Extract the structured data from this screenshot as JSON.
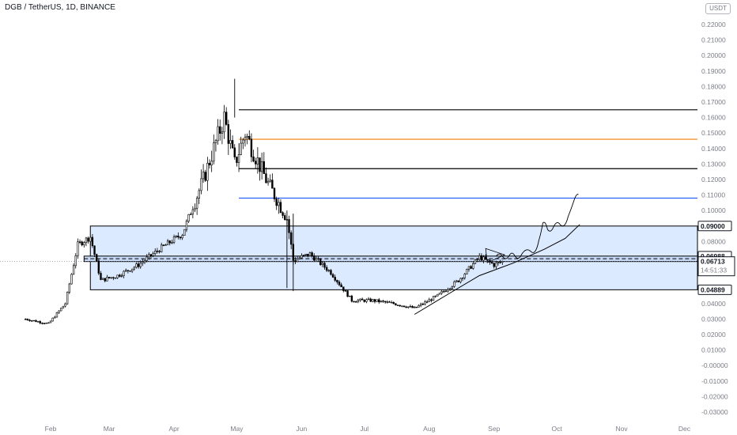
{
  "header": {
    "title": "DGB / TetherUS, 1D, BINANCE",
    "currency_badge": "USDT"
  },
  "colors": {
    "up": "#000000",
    "down": "#000000",
    "zone_fill": "#d6e6ff",
    "blue_line": "#2962ff",
    "orange_line": "#f57c00",
    "last_price_bg": "#131722"
  },
  "chart_data": {
    "type": "candlestick",
    "symbol": "DGB / TetherUS",
    "interval": "1D",
    "exchange": "BINANCE",
    "y_axis": {
      "range": [
        -0.03,
        0.23
      ],
      "ticks": [
        "0.22000",
        "0.21000",
        "0.20000",
        "0.19000",
        "0.18000",
        "0.17000",
        "0.16000",
        "0.15000",
        "0.14000",
        "0.13000",
        "0.12000",
        "0.11000",
        "0.10000",
        "0.09000",
        "0.08000",
        "0.07000",
        "0.06000",
        "0.05000",
        "0.04000",
        "0.03000",
        "0.02000",
        "0.01000",
        "-0.00000",
        "-0.01000",
        "-0.02000",
        "-0.03000"
      ]
    },
    "x_axis": {
      "labels": [
        "Feb",
        "Mar",
        "Apr",
        "May",
        "Jun",
        "Jul",
        "Aug",
        "Sep",
        "Oct",
        "Nov",
        "Dec"
      ]
    },
    "price_anchors": [
      {
        "date": "Jan 20",
        "close": 0.03
      },
      {
        "date": "Jan 31",
        "close": 0.027
      },
      {
        "date": "Feb 08",
        "close": 0.04
      },
      {
        "date": "Feb 14",
        "close": 0.078
      },
      {
        "date": "Feb 20",
        "close": 0.083
      },
      {
        "date": "Feb 25",
        "close": 0.055
      },
      {
        "date": "Mar 05",
        "close": 0.058
      },
      {
        "date": "Mar 15",
        "close": 0.065
      },
      {
        "date": "Mar 25",
        "close": 0.075
      },
      {
        "date": "Apr 05",
        "close": 0.085
      },
      {
        "date": "Apr 15",
        "close": 0.12
      },
      {
        "date": "Apr 25",
        "close": 0.16
      },
      {
        "date": "Apr 30",
        "close": 0.13
      },
      {
        "date": "May 05",
        "close": 0.15
      },
      {
        "date": "May 15",
        "close": 0.12
      },
      {
        "date": "May 25",
        "close": 0.095
      },
      {
        "date": "May 28",
        "close": 0.068
      },
      {
        "date": "Jun 05",
        "close": 0.072
      },
      {
        "date": "Jun 15",
        "close": 0.06
      },
      {
        "date": "Jun 25",
        "close": 0.042
      },
      {
        "date": "Jul 05",
        "close": 0.042
      },
      {
        "date": "Jul 15",
        "close": 0.04
      },
      {
        "date": "Jul 25",
        "close": 0.037
      },
      {
        "date": "Aug 05",
        "close": 0.045
      },
      {
        "date": "Aug 15",
        "close": 0.055
      },
      {
        "date": "Aug 25",
        "close": 0.07
      },
      {
        "date": "Sep 01",
        "close": 0.065
      },
      {
        "date": "Sep 05",
        "close": 0.0671
      }
    ],
    "horizontal_levels": [
      {
        "price": 0.165,
        "color": "#000000"
      },
      {
        "price": 0.146,
        "color": "#f57c00"
      },
      {
        "price": 0.127,
        "color": "#000000"
      },
      {
        "price": 0.108,
        "color": "#2962ff"
      }
    ],
    "zones": [
      {
        "from_price": 0.04889,
        "to_price": 0.09,
        "color": "#d6e6ff"
      },
      {
        "from_price": 0.0671,
        "to_price": 0.0706,
        "color": "#c5d8f8"
      }
    ],
    "dashed_level": 0.0689,
    "price_labels": {
      "upper": "0.09000",
      "middle": "0.06988",
      "last": "0.06713",
      "countdown": "14:51:33",
      "lower": "0.04889"
    }
  }
}
